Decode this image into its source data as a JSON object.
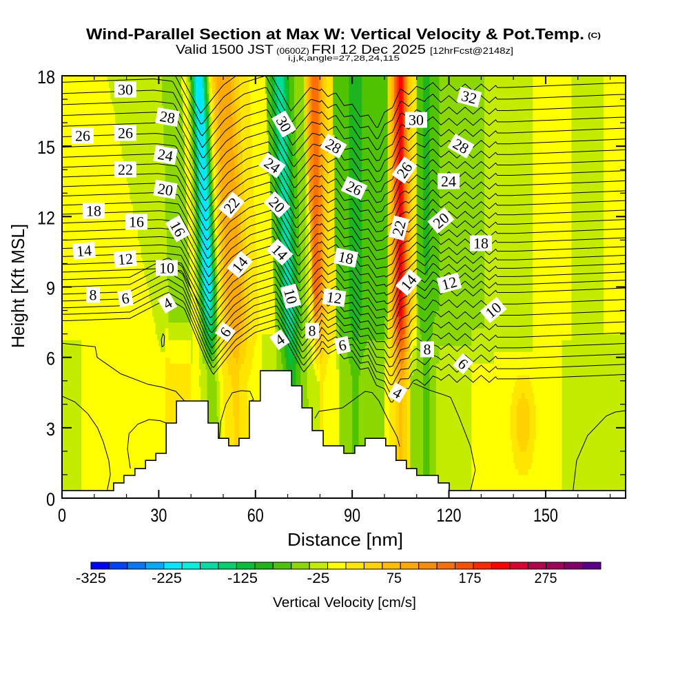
{
  "chart_data": {
    "type": "heatmap",
    "title": "Wind-Parallel Section at Max W: Vertical Velocity & Pot.Temp.",
    "copyright": "(C)",
    "subtitle": {
      "valid_local": "Valid 1500 JST",
      "valid_utc": "(0600Z)",
      "valid_date": "FRI 12 Dec 2025",
      "forecast": "[12hrFcst@2148z]",
      "indices": "i,j,k,angle=27,28,24,115"
    },
    "xlabel": "Distance [nm]",
    "ylabel": "Height [Kft MSL]",
    "xlim": [
      0,
      174.8
    ],
    "ylim": [
      0,
      18
    ],
    "xticks": [
      0,
      30,
      60,
      90,
      120,
      150
    ],
    "xtick_labels": [
      "0",
      "30",
      "60",
      "90",
      "120",
      "150"
    ],
    "x_minor_step": 10,
    "yticks": [
      0,
      3,
      6,
      9,
      12,
      15,
      18
    ],
    "ytick_labels": [
      "0",
      "3",
      "6",
      "9",
      "12",
      "15",
      "18"
    ],
    "y_minor_step": 1,
    "grid": false,
    "colorbar": {
      "label": "Vertical Velocity [cm/s]",
      "placement": "bottom",
      "min": -325,
      "max": 375,
      "step": 25,
      "tick_labels": [
        "-325",
        "-225",
        "-125",
        "-25",
        "75",
        "175",
        "275"
      ],
      "colors": [
        "#0000ff",
        "#0040ff",
        "#0078ff",
        "#00aaff",
        "#00e6ff",
        "#00f0dc",
        "#00dca0",
        "#00d070",
        "#00c040",
        "#1eb41e",
        "#50c300",
        "#8cd700",
        "#c3eb00",
        "#ffff00",
        "#ffe600",
        "#ffd200",
        "#ffbe00",
        "#ffaa00",
        "#ff8c00",
        "#ff6e00",
        "#ff5000",
        "#ff2800",
        "#ff0000",
        "#dc0032",
        "#b4004b",
        "#a0005a",
        "#800068",
        "#5a0087"
      ]
    },
    "field": {
      "blend_kft": [
        5,
        8
      ],
      "upper": {
        "breaks": [
          0,
          14,
          31,
          37,
          58,
          63,
          75,
          84,
          101,
          110,
          117,
          131,
          146,
          158,
          168,
          176
        ],
        "tilt": [
          0,
          1.4,
          0.2,
          0.3,
          0.3,
          0.3,
          0.3,
          0.1,
          0,
          0,
          0,
          0,
          0,
          0,
          0,
          0
        ],
        "values": [
          10,
          -15,
          -35,
          25,
          15,
          -45,
          35,
          -60,
          40,
          -50,
          -35,
          -25,
          10,
          -15,
          10
        ]
      },
      "lower": {
        "breaks": [
          0,
          6,
          32,
          40,
          44,
          55,
          62,
          80,
          86,
          100,
          108,
          116,
          127,
          134,
          155,
          160,
          176
        ],
        "values": [
          -15,
          10,
          45,
          10,
          30,
          10,
          -30,
          10,
          -35,
          20,
          -40,
          -15,
          10,
          15,
          -15,
          -20
        ]
      },
      "columns": [
        {
          "center_nm": 42.5,
          "tilt_nm_per_kft": 0.3,
          "amp": -250,
          "sigma_nm": 2.6,
          "full_above_kft": 9,
          "fade_kft": 5,
          "floor": 0.3
        },
        {
          "center_nm": 50,
          "tilt_nm_per_kft": 0.35,
          "amp": 100,
          "sigma_nm": 4,
          "full_above_kft": 8,
          "fade_kft": 4,
          "floor": 0.25
        },
        {
          "center_nm": 67.5,
          "tilt_nm_per_kft": 0.3,
          "amp": -120,
          "sigma_nm": 2.4,
          "full_above_kft": 8,
          "fade_kft": 5,
          "floor": 0.5
        },
        {
          "center_nm": 78.5,
          "tilt_nm_per_kft": 0.05,
          "amp": 130,
          "sigma_nm": 2.5,
          "full_above_kft": 9,
          "fade_kft": 5,
          "floor": 0.2
        },
        {
          "center_nm": 91,
          "tilt_nm_per_kft": 0,
          "amp": -40,
          "sigma_nm": 2,
          "full_above_kft": 8,
          "fade_kft": 4,
          "floor": 0.5
        },
        {
          "center_nm": 104.8,
          "tilt_nm_per_kft": 0.02,
          "amp": 195,
          "sigma_nm": 2.2,
          "full_above_kft": 8,
          "fade_kft": 5,
          "floor": 0.3
        },
        {
          "center_nm": 113,
          "tilt_nm_per_kft": 0,
          "amp": -45,
          "sigma_nm": 1.5,
          "full_above_kft": 12,
          "fade_kft": 6,
          "floor": 0.3
        }
      ],
      "blobs": [
        {
          "x_nm": 143,
          "z_kft": 3.2,
          "rx_nm": 4.5,
          "rz_kft": 2.6,
          "amp": 45
        }
      ]
    },
    "theta_contours": {
      "levels": [
        4,
        5,
        6,
        7,
        8,
        9,
        10,
        11,
        12,
        13,
        14,
        15,
        16,
        17,
        18,
        19,
        20,
        21,
        22,
        23,
        24,
        25,
        26,
        27,
        28,
        29,
        30,
        31,
        32,
        33
      ],
      "labels": [
        30,
        28,
        26,
        26,
        24,
        22,
        20,
        18,
        16,
        16,
        14,
        12,
        10,
        8,
        6,
        4,
        22,
        14,
        6,
        30,
        24,
        20,
        14,
        10,
        4,
        8,
        28,
        26,
        18,
        12,
        6,
        30,
        26,
        22,
        14,
        4,
        8,
        32,
        28,
        24,
        20,
        18,
        12,
        10,
        6
      ],
      "model": {
        "base_kft_at_theta8": 8.7,
        "slope_kft_per_theta": 0.3,
        "curvature": 0.004,
        "pattern_tilt_nm_per_kft": 0.35,
        "pattern_ref_kft": 13,
        "offset_profile": [
          [
            0,
            0
          ],
          [
            30,
            0.15
          ],
          [
            36,
            0.05
          ],
          [
            45,
            -2.3
          ],
          [
            52,
            -1.1
          ],
          [
            58,
            -0.5
          ],
          [
            65,
            -0.2
          ],
          [
            73,
            -2.2
          ],
          [
            79,
            -1.2
          ],
          [
            86,
            -1.5
          ],
          [
            100,
            -2.8
          ],
          [
            104,
            -2.0
          ],
          [
            107,
            -1.4
          ],
          [
            112,
            -1.3
          ],
          [
            115,
            -1.1
          ],
          [
            120,
            -1.2
          ],
          [
            140,
            -1.2
          ],
          [
            175,
            -1.0
          ]
        ],
        "ripple": {
          "from_nm": 80,
          "to_nm": 135,
          "period_nm": 5,
          "amp_kft": 0.15
        },
        "low_bulge": {
          "center_nm": 33,
          "half_width_nm": 12,
          "kft": 0.8,
          "theta_max": 10
        },
        "low_right_drop": {
          "from_nm": 95,
          "to_nm": 110,
          "kft_per_theta": 0.16,
          "theta_ref": 12
        }
      },
      "low_contours": [
        [
          [
            0,
            4.35
          ],
          [
            4,
            4.1
          ],
          [
            8,
            3.6
          ],
          [
            11,
            3.0
          ],
          [
            12.8,
            2.4
          ],
          [
            14.5,
            1.6
          ],
          [
            15,
            1.0
          ],
          [
            14,
            0.32
          ]
        ],
        [
          [
            0,
            6.6
          ],
          [
            10.3,
            6.45
          ],
          [
            10.9,
            6.0
          ],
          [
            18.2,
            5.3
          ],
          [
            26.7,
            4.85
          ],
          [
            31,
            4.73
          ],
          [
            35.3,
            4.55
          ],
          [
            38,
            4.14
          ]
        ],
        [
          [
            21.2,
            1.26
          ],
          [
            20.3,
            2.1
          ],
          [
            20.8,
            2.75
          ],
          [
            23.5,
            3.15
          ],
          [
            27,
            3.35
          ],
          [
            30.5,
            3.3
          ],
          [
            32.3,
            3.2
          ]
        ],
        [
          [
            48.8,
            2.55
          ],
          [
            49.2,
            3.25
          ],
          [
            50.8,
            4.0
          ],
          [
            52.8,
            4.49
          ],
          [
            55.6,
            4.58
          ],
          [
            58.3,
            4.55
          ],
          [
            59.4,
            4.2
          ],
          [
            58.5,
            4.14
          ]
        ],
        [
          [
            78.4,
            3.4
          ],
          [
            79.7,
            3.7
          ],
          [
            87,
            3.85
          ],
          [
            94,
            4.55
          ],
          [
            96.2,
            4.5
          ],
          [
            98.3,
            4.14
          ],
          [
            101,
            3.38
          ],
          [
            104,
            2.59
          ],
          [
            104.7,
            2.2
          ]
        ],
        [
          [
            109,
            4.9
          ],
          [
            114,
            4.6
          ],
          [
            118.5,
            4.4
          ],
          [
            120.5,
            4.3
          ],
          [
            123.3,
            3.4
          ],
          [
            126.7,
            2.2
          ],
          [
            128.2,
            1.2
          ],
          [
            126.7,
            0.32
          ]
        ],
        [
          [
            158.5,
            0.32
          ],
          [
            159.6,
            1.6
          ],
          [
            163,
            2.67
          ],
          [
            168.8,
            3.5
          ],
          [
            171.6,
            3.67
          ],
          [
            174.8,
            3.73
          ]
        ],
        [
          [
            30.8,
            6.75
          ],
          [
            31.3,
            7.0
          ],
          [
            31.8,
            6.9
          ],
          [
            31.6,
            6.5
          ],
          [
            31.0,
            6.45
          ],
          [
            30.8,
            6.75
          ]
        ]
      ]
    },
    "terrain": {
      "steps": [
        [
          0,
          0.32
        ],
        [
          16.0,
          0.65
        ],
        [
          19.2,
          0.97
        ],
        [
          22.6,
          1.26
        ],
        [
          25.9,
          1.61
        ],
        [
          29.1,
          1.91
        ],
        [
          32.3,
          3.2
        ],
        [
          35.5,
          4.14
        ],
        [
          45.3,
          3.2
        ],
        [
          48.5,
          2.55
        ],
        [
          51.7,
          2.23
        ],
        [
          54.9,
          2.55
        ],
        [
          58.1,
          4.14
        ],
        [
          61.5,
          5.43
        ],
        [
          71.2,
          4.79
        ],
        [
          74.4,
          3.85
        ],
        [
          77.6,
          2.88
        ],
        [
          81.0,
          2.23
        ],
        [
          87.4,
          1.91
        ],
        [
          90.8,
          2.23
        ],
        [
          94.0,
          2.55
        ],
        [
          100.4,
          2.23
        ],
        [
          103.6,
          1.61
        ],
        [
          106.8,
          1.26
        ],
        [
          110.0,
          0.97
        ],
        [
          116.7,
          0.65
        ],
        [
          120.1,
          0.32
        ]
      ]
    }
  }
}
